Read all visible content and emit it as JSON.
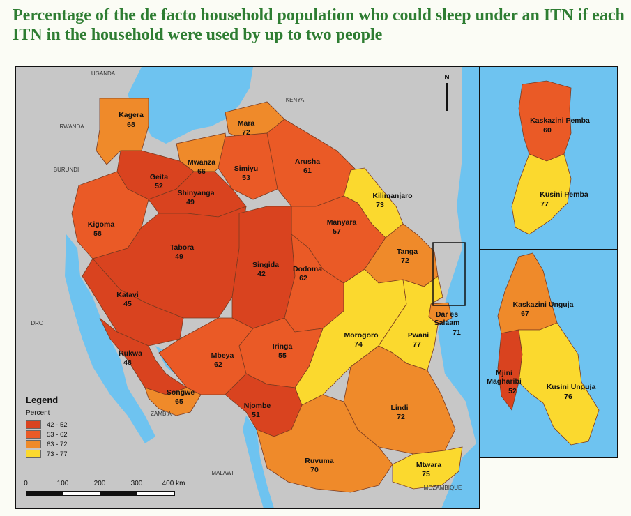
{
  "title": "Percentage of the de facto household population who could sleep under an ITN if each ITN in the household were used by up to two people",
  "colors": {
    "class_42_52": "#d9431f",
    "class_53_62": "#ea5a26",
    "class_63_72": "#ef8a2a",
    "class_73_77": "#fbd92e",
    "water": "#6ec3f0",
    "neighbor_land": "#c7c7c7"
  },
  "regions": [
    {
      "name": "Kagera",
      "value": "68"
    },
    {
      "name": "Mara",
      "value": "72"
    },
    {
      "name": "Mwanza",
      "value": "66"
    },
    {
      "name": "Simiyu",
      "value": "53"
    },
    {
      "name": "Arusha",
      "value": "61"
    },
    {
      "name": "Geita",
      "value": "52"
    },
    {
      "name": "Shinyanga",
      "value": "49"
    },
    {
      "name": "Kilimanjaro",
      "value": "73"
    },
    {
      "name": "Kigoma",
      "value": "58"
    },
    {
      "name": "Manyara",
      "value": "57"
    },
    {
      "name": "Tabora",
      "value": "49"
    },
    {
      "name": "Singida",
      "value": "42"
    },
    {
      "name": "Dodoma",
      "value": "62"
    },
    {
      "name": "Tanga",
      "value": "72"
    },
    {
      "name": "Katavi",
      "value": "45"
    },
    {
      "name": "Dar es Salaam",
      "value": "71"
    },
    {
      "name": "Morogoro",
      "value": "74"
    },
    {
      "name": "Pwani",
      "value": "77"
    },
    {
      "name": "Rukwa",
      "value": "48"
    },
    {
      "name": "Iringa",
      "value": "55"
    },
    {
      "name": "Mbeya",
      "value": "62"
    },
    {
      "name": "Songwe",
      "value": "65"
    },
    {
      "name": "Njombe",
      "value": "51"
    },
    {
      "name": "Lindi",
      "value": "72"
    },
    {
      "name": "Ruvuma",
      "value": "70"
    },
    {
      "name": "Mtwara",
      "value": "75"
    }
  ],
  "zanzibar_regions": [
    {
      "name": "Kaskazini Pemba",
      "value": "60"
    },
    {
      "name": "Kusini Pemba",
      "value": "77"
    },
    {
      "name": "Kaskazini Unguja",
      "value": "67"
    },
    {
      "name": "Mjini Magharibi",
      "value": "52"
    },
    {
      "name": "Kusini Unguja",
      "value": "76"
    }
  ],
  "neighbors": {
    "uganda": "UGANDA",
    "kenya": "KENYA",
    "rwanda": "RWANDA",
    "burundi": "BURUNDI",
    "drc": "DRC",
    "zambia": "ZAMBIA",
    "malawi": "MALAWI",
    "mozambique": "MOZAMBIQUE"
  },
  "legend": {
    "title": "Legend",
    "subtitle": "Percent",
    "items": [
      {
        "label": "42 - 52",
        "color": "#d9431f"
      },
      {
        "label": "53 - 62",
        "color": "#ea5a26"
      },
      {
        "label": "63 - 72",
        "color": "#ef8a2a"
      },
      {
        "label": "73 - 77",
        "color": "#fbd92e"
      }
    ]
  },
  "scale_bar": {
    "ticks": [
      "0",
      "100",
      "200",
      "300",
      "400 km"
    ]
  },
  "north_label": "N"
}
